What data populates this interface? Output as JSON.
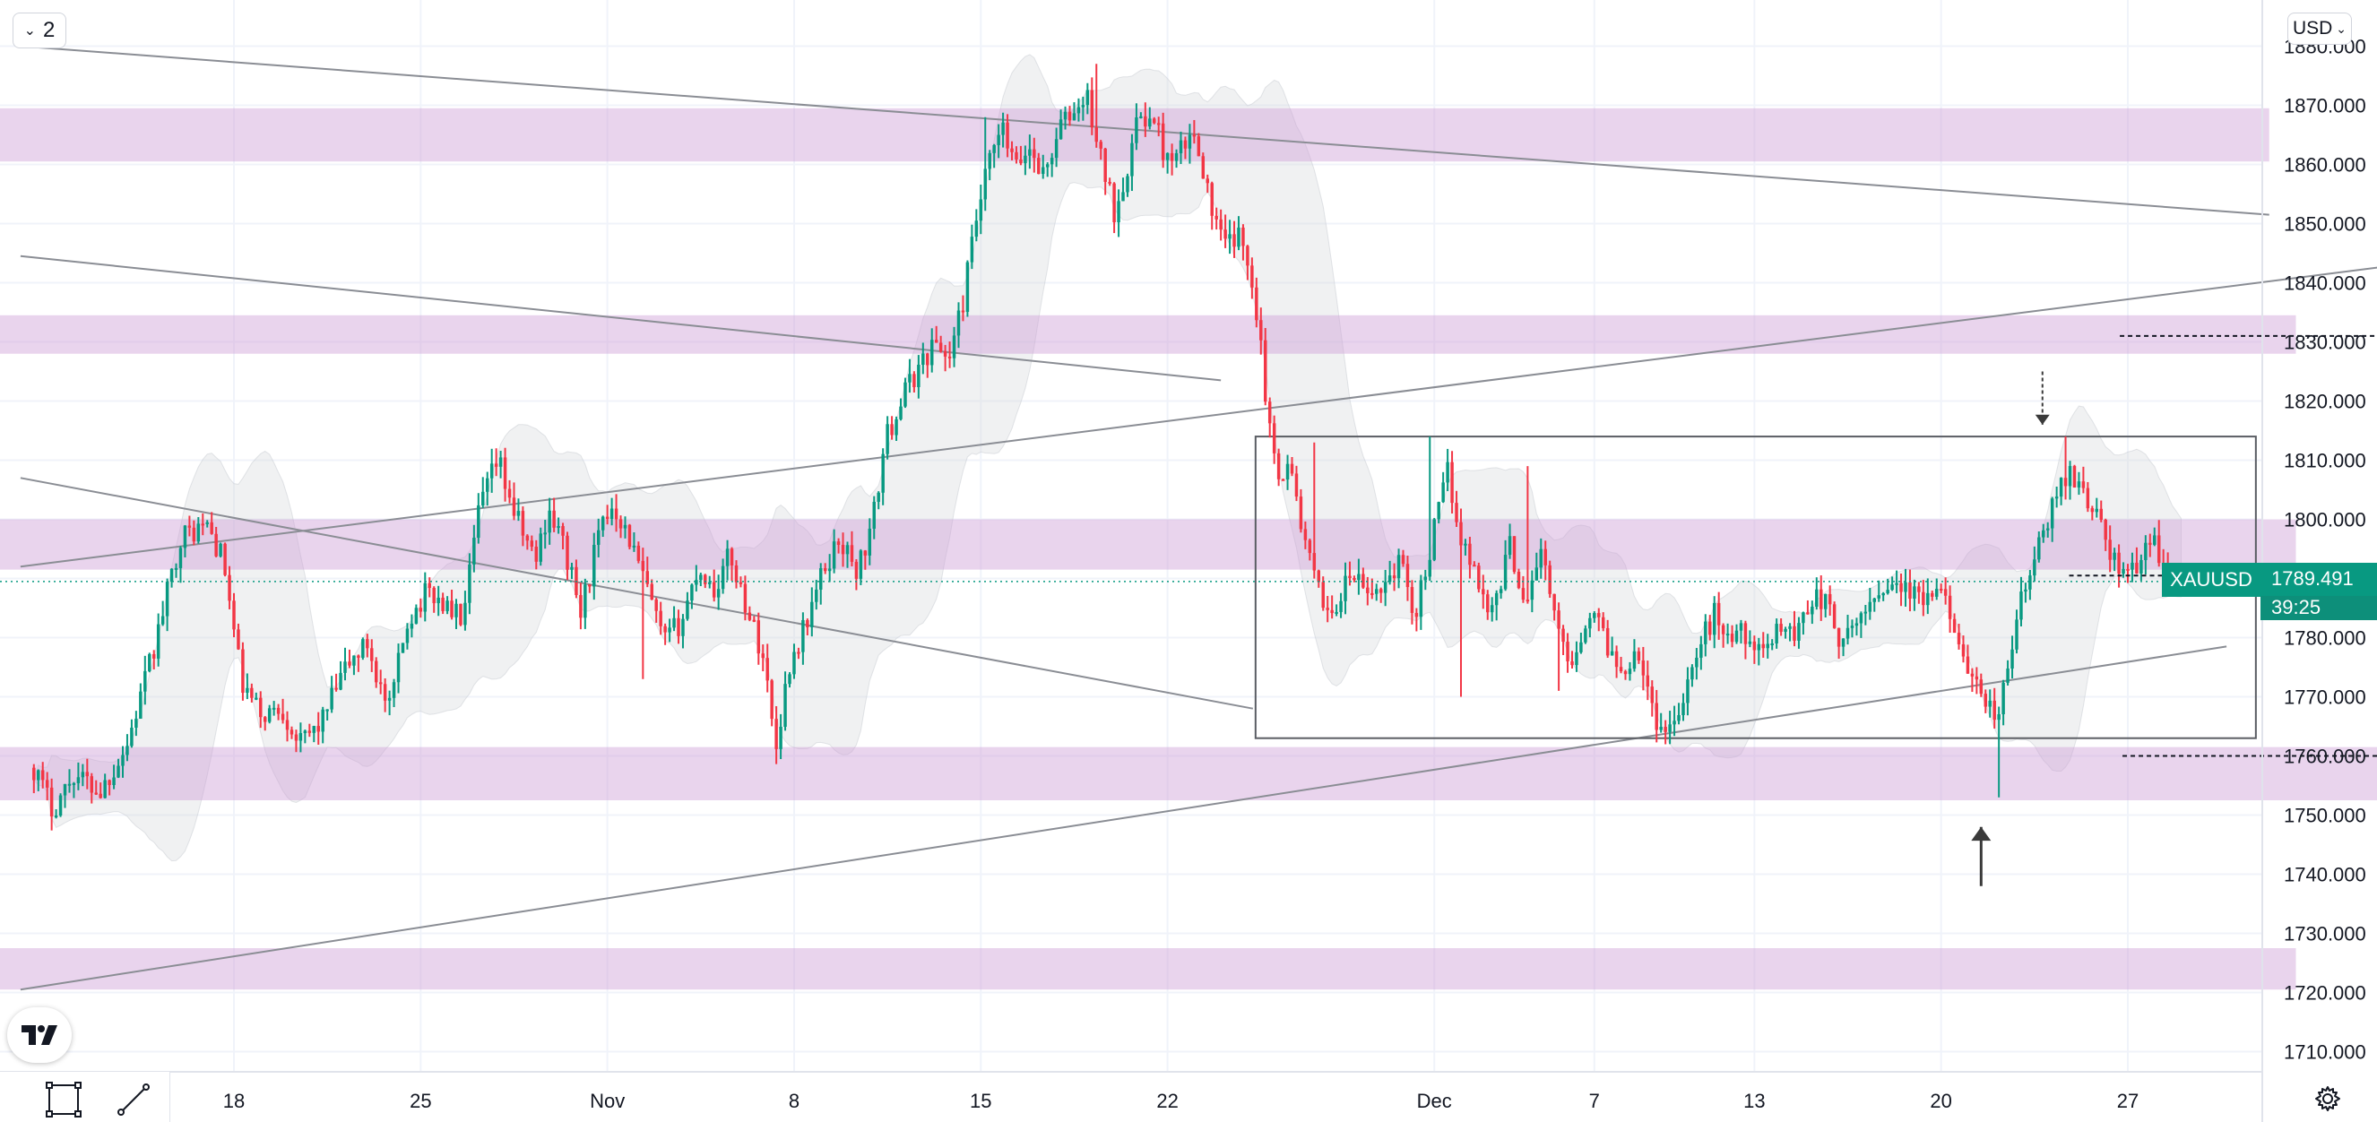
{
  "toolbar": {
    "interval": "2"
  },
  "currency": {
    "label": "USD"
  },
  "price_tag": {
    "symbol": "XAUUSD",
    "value": "1789.491",
    "countdown": "39:25"
  },
  "icons": {
    "tv_logo": "tradingview-logo-icon",
    "settings": "gear-icon",
    "ruler": "measure-icon",
    "trendline": "trendline-icon"
  },
  "colors": {
    "up": "#089981",
    "down": "#f23645",
    "zone": "#cf9fd8",
    "band": "#d0d3d8",
    "grid": "#f0f3fa",
    "current_price": "#089981"
  },
  "chart_data": {
    "type": "candlestick",
    "symbol": "XAUUSD",
    "currency": "USD",
    "y_axis": {
      "range": [
        1707,
        1880
      ],
      "ticks": [
        1710,
        1720,
        1730,
        1740,
        1750,
        1760,
        1770,
        1780,
        1790,
        1800,
        1810,
        1820,
        1830,
        1840,
        1850,
        1860,
        1870,
        1880
      ],
      "tick_labels": [
        "1710.000",
        "1720.000",
        "1730.000",
        "1740.000",
        "1750.000",
        "1760.000",
        "1770.000",
        "1780.000",
        "1790.000",
        "1800.000",
        "1810.000",
        "1820.000",
        "1830.000",
        "1840.000",
        "1850.000",
        "1860.000",
        "1870.000",
        "1880.000"
      ]
    },
    "x_axis": {
      "ticks": [
        {
          "day": 16,
          "label": "18"
        },
        {
          "day": 23,
          "label": "25"
        },
        {
          "day": 30,
          "label": "Nov"
        },
        {
          "day": 37,
          "label": "8"
        },
        {
          "day": 44,
          "label": "15"
        },
        {
          "day": 51,
          "label": "22"
        },
        {
          "day": 61,
          "label": "Dec"
        },
        {
          "day": 67,
          "label": "7"
        },
        {
          "day": 73,
          "label": "13"
        },
        {
          "day": 80,
          "label": "20"
        },
        {
          "day": 87,
          "label": "27"
        }
      ]
    },
    "current_price": 1789.491,
    "path": [
      [
        8.5,
        1758
      ],
      [
        9.2,
        1751
      ],
      [
        10,
        1757
      ],
      [
        11,
        1754
      ],
      [
        12,
        1762
      ],
      [
        13,
        1778
      ],
      [
        14,
        1797
      ],
      [
        15,
        1799
      ],
      [
        15.6,
        1793
      ],
      [
        16.3,
        1772
      ],
      [
        17,
        1767
      ],
      [
        17.8,
        1768
      ],
      [
        18.5,
        1762
      ],
      [
        19.3,
        1766
      ],
      [
        20.2,
        1775
      ],
      [
        21,
        1779
      ],
      [
        21.8,
        1767
      ],
      [
        22.5,
        1783
      ],
      [
        23.3,
        1788
      ],
      [
        24,
        1785
      ],
      [
        24.6,
        1783
      ],
      [
        25.2,
        1802
      ],
      [
        25.9,
        1810
      ],
      [
        26.6,
        1800
      ],
      [
        27.3,
        1793
      ],
      [
        27.8,
        1802
      ],
      [
        28.4,
        1795
      ],
      [
        29,
        1784
      ],
      [
        29.6,
        1796
      ],
      [
        30.2,
        1803
      ],
      [
        30.8,
        1797
      ],
      [
        31.5,
        1788
      ],
      [
        32.1,
        1779
      ],
      [
        32.8,
        1783
      ],
      [
        33.4,
        1792
      ],
      [
        34,
        1788
      ],
      [
        34.6,
        1794
      ],
      [
        35.3,
        1784
      ],
      [
        35.9,
        1776
      ],
      [
        36.3,
        1761
      ],
      [
        36.8,
        1775
      ],
      [
        37.4,
        1782
      ],
      [
        38,
        1790
      ],
      [
        38.7,
        1797
      ],
      [
        39.3,
        1791
      ],
      [
        39.9,
        1798
      ],
      [
        40.4,
        1813
      ],
      [
        41,
        1820
      ],
      [
        41.7,
        1826
      ],
      [
        42.3,
        1830
      ],
      [
        42.8,
        1827
      ],
      [
        43.3,
        1836
      ],
      [
        43.8,
        1850
      ],
      [
        44.3,
        1860
      ],
      [
        44.8,
        1866
      ],
      [
        45.3,
        1859
      ],
      [
        45.8,
        1863
      ],
      [
        46.4,
        1858
      ],
      [
        46.9,
        1866
      ],
      [
        47.5,
        1869
      ],
      [
        48,
        1871
      ],
      [
        48.5,
        1861
      ],
      [
        49,
        1852
      ],
      [
        49.5,
        1860
      ],
      [
        50,
        1869
      ],
      [
        50.6,
        1866
      ],
      [
        51.1,
        1859
      ],
      [
        51.6,
        1863
      ],
      [
        52.1,
        1865
      ],
      [
        52.6,
        1853
      ],
      [
        53.1,
        1846
      ],
      [
        53.6,
        1848
      ],
      [
        54.1,
        1843
      ],
      [
        54.5,
        1830
      ],
      [
        54.8,
        1815
      ],
      [
        55.2,
        1808
      ],
      [
        55.6,
        1809
      ],
      [
        56.1,
        1797
      ],
      [
        56.6,
        1788
      ],
      [
        57.2,
        1784
      ],
      [
        57.9,
        1791
      ],
      [
        58.5,
        1787
      ],
      [
        59.1,
        1789
      ],
      [
        59.7,
        1793
      ],
      [
        60.3,
        1784
      ],
      [
        60.9,
        1796
      ],
      [
        61.5,
        1808
      ],
      [
        62,
        1797
      ],
      [
        62.6,
        1790
      ],
      [
        63.2,
        1784
      ],
      [
        63.8,
        1796
      ],
      [
        64.4,
        1786
      ],
      [
        65,
        1795
      ],
      [
        65.6,
        1781
      ],
      [
        66.2,
        1776
      ],
      [
        66.8,
        1785
      ],
      [
        67.4,
        1780
      ],
      [
        68,
        1774
      ],
      [
        68.6,
        1779
      ],
      [
        69.2,
        1767
      ],
      [
        69.7,
        1764
      ],
      [
        70.3,
        1770
      ],
      [
        70.9,
        1778
      ],
      [
        71.5,
        1784
      ],
      [
        72.1,
        1780
      ],
      [
        72.7,
        1781
      ],
      [
        73.3,
        1776
      ],
      [
        73.9,
        1783
      ],
      [
        74.5,
        1780
      ],
      [
        75.1,
        1787
      ],
      [
        75.7,
        1786
      ],
      [
        76.3,
        1778
      ],
      [
        76.9,
        1783
      ],
      [
        77.5,
        1787
      ],
      [
        78.1,
        1790
      ],
      [
        78.7,
        1788
      ],
      [
        79.2,
        1786
      ],
      [
        79.8,
        1787
      ],
      [
        80.4,
        1785
      ],
      [
        81,
        1772
      ],
      [
        81.6,
        1770
      ],
      [
        82.1,
        1766
      ],
      [
        82.5,
        1774
      ],
      [
        82.9,
        1785
      ],
      [
        83.5,
        1793
      ],
      [
        84.1,
        1801
      ],
      [
        84.7,
        1808
      ],
      [
        85.2,
        1806
      ],
      [
        85.8,
        1801
      ],
      [
        86.3,
        1795
      ],
      [
        86.8,
        1790
      ],
      [
        87.4,
        1793
      ],
      [
        88,
        1797
      ],
      [
        88.5,
        1790
      ],
      [
        89,
        1789.5
      ]
    ],
    "volatility_spikes": [
      {
        "day": 14.8,
        "high": 1801
      },
      {
        "day": 25.9,
        "high": 1812
      },
      {
        "day": 31.3,
        "low": 1773
      },
      {
        "day": 36.3,
        "low": 1759
      },
      {
        "day": 44.2,
        "high": 1868
      },
      {
        "day": 48.4,
        "high": 1877
      },
      {
        "day": 56.5,
        "high": 1813
      },
      {
        "day": 60.9,
        "high": 1814
      },
      {
        "day": 62.0,
        "low": 1770
      },
      {
        "day": 64.5,
        "high": 1809
      },
      {
        "day": 65.6,
        "low": 1771
      },
      {
        "day": 69.8,
        "low": 1762
      },
      {
        "day": 82.1,
        "low": 1753
      },
      {
        "day": 84.6,
        "high": 1814
      }
    ],
    "zones": [
      {
        "from": 1860.5,
        "to": 1869.5,
        "x_end_day": 92.3
      },
      {
        "from": 1828.0,
        "to": 1834.5,
        "x_end_day": 93.3
      },
      {
        "from": 1791.5,
        "to": 1800.0,
        "x_end_day": 93.3
      },
      {
        "from": 1752.5,
        "to": 1761.5,
        "x_end_day": 97.8
      },
      {
        "from": 1720.5,
        "to": 1727.5,
        "x_end_day": 93.3
      }
    ],
    "trendlines": [
      {
        "from": [
          8,
          1880.0
        ],
        "to": [
          92.3,
          1851.5
        ]
      },
      {
        "from": [
          8,
          1844.5
        ],
        "to": [
          53,
          1823.5
        ]
      },
      {
        "from": [
          8,
          1807.0
        ],
        "to": [
          54.2,
          1768.0
        ]
      },
      {
        "from": [
          8,
          1792.0
        ],
        "to": [
          98,
          1843.5
        ]
      },
      {
        "from": [
          8,
          1720.5
        ],
        "to": [
          90.7,
          1778.5
        ]
      }
    ],
    "range_box": {
      "from_day": 54.3,
      "to_day": 91.8,
      "low": 1763,
      "high": 1814
    },
    "dashed_levels": [
      {
        "price": 1831.0,
        "from_day": 86.7,
        "to_day": 97.3
      },
      {
        "price": 1760.0,
        "from_day": 86.8,
        "to_day": 98
      },
      {
        "price": 1790.5,
        "from_day": 84.8,
        "to_day": 91
      }
    ],
    "arrows": [
      {
        "direction": "down",
        "day": 83.8,
        "from": 1825.0,
        "to": 1816.0,
        "style": "dashed"
      },
      {
        "direction": "up",
        "day": 81.5,
        "from": 1738.0,
        "to": 1748.0,
        "style": "solid"
      }
    ],
    "bollinger": {
      "period": 20,
      "multiplier": 2
    }
  }
}
